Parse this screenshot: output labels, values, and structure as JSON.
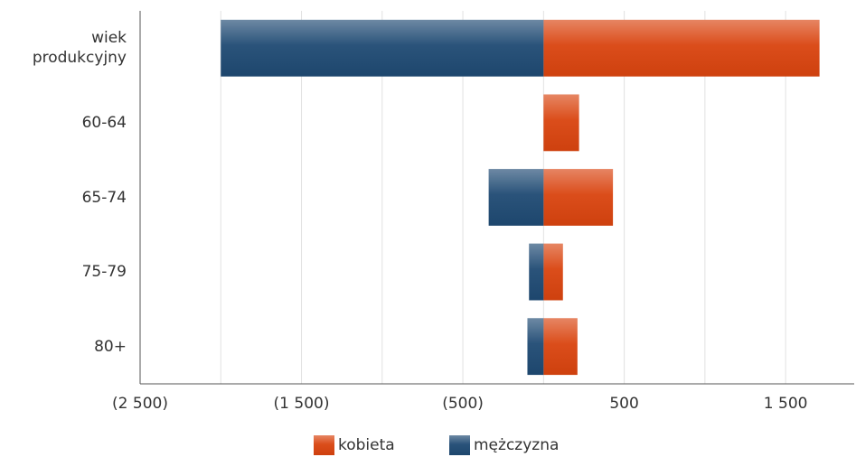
{
  "chart_data": {
    "type": "bar",
    "orientation": "horizontal",
    "stacked": true,
    "categories": [
      "wiek produkcyjny",
      "60-64",
      "65-74",
      "75-79",
      "80+"
    ],
    "series": [
      {
        "name": "kobieta",
        "color": "#d9440f",
        "values": [
          1710,
          220,
          430,
          120,
          210
        ]
      },
      {
        "name": "mężczyzna",
        "color": "#1f4a73",
        "values": [
          -2000,
          0,
          -340,
          -90,
          -100
        ]
      }
    ],
    "xlim": [
      -2500,
      1925
    ],
    "xticks": [
      {
        "value": -2500,
        "label": "(2 500)"
      },
      {
        "value": -1500,
        "label": "(1 500)"
      },
      {
        "value": -500,
        "label": "(500)"
      },
      {
        "value": 500,
        "label": "500"
      },
      {
        "value": 1500,
        "label": "1 500"
      }
    ],
    "grid": true,
    "legend": "bottom"
  }
}
